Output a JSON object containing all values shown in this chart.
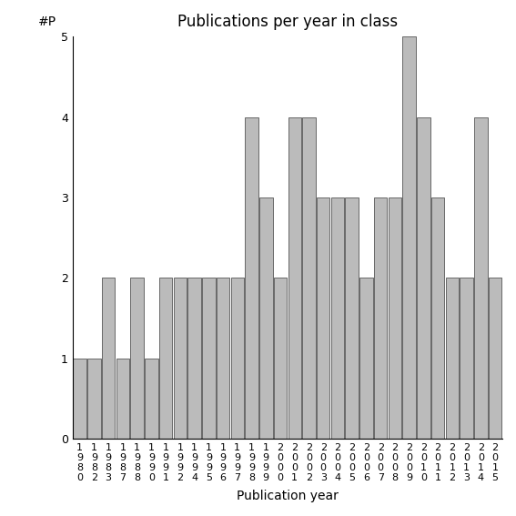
{
  "years": [
    "1980",
    "1982",
    "1983",
    "1987",
    "1988",
    "1990",
    "1991",
    "1992",
    "1994",
    "1995",
    "1996",
    "1997",
    "1998",
    "1999",
    "2000",
    "2001",
    "2002",
    "2003",
    "2004",
    "2005",
    "2006",
    "2007",
    "2008",
    "2009",
    "2010",
    "2011",
    "2012",
    "2013",
    "2014",
    "2015"
  ],
  "values": [
    1,
    1,
    2,
    1,
    2,
    1,
    2,
    2,
    2,
    2,
    2,
    2,
    4,
    3,
    2,
    4,
    4,
    3,
    3,
    3,
    2,
    3,
    3,
    5,
    4,
    3,
    2,
    2,
    4,
    2
  ],
  "bar_color": "#bbbbbb",
  "bar_edgecolor": "#555555",
  "title": "Publications per year in class",
  "xlabel": "Publication year",
  "ylabel": "#P",
  "ylim": [
    0,
    5
  ],
  "yticks": [
    0,
    1,
    2,
    3,
    4,
    5
  ],
  "title_fontsize": 12,
  "label_fontsize": 10,
  "tick_fontsize": 8,
  "bg_color": "#ffffff"
}
